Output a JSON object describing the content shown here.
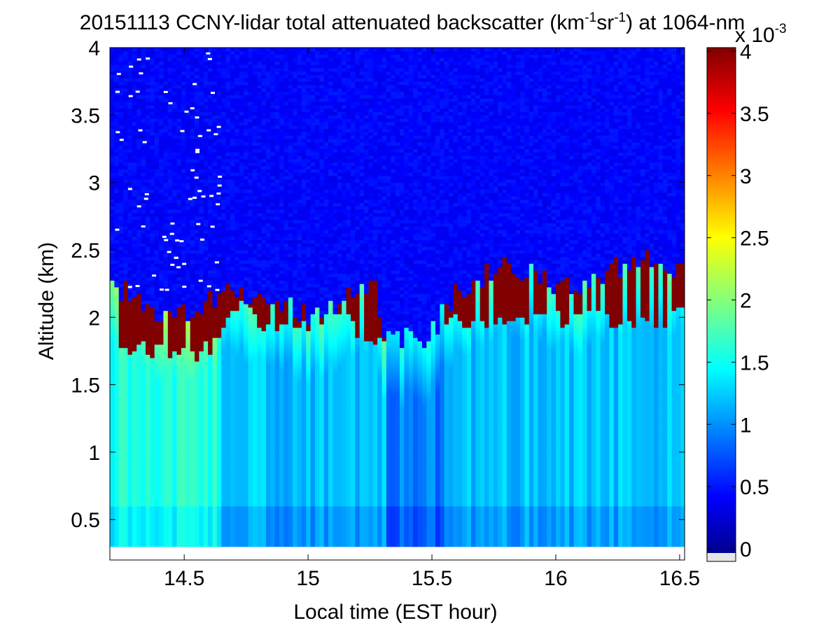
{
  "title": {
    "prefix": "20151113 CCNY-lidar total attenuated backscatter (km",
    "sup1": "-1",
    "mid": "sr",
    "sup2": "-1",
    "suffix": ") at 1064-nm"
  },
  "colorbar": {
    "exponent_prefix": "x 10",
    "exponent": "-3",
    "ticks": [
      "0",
      "0.5",
      "1",
      "1.5",
      "2",
      "2.5",
      "3",
      "3.5",
      "4"
    ],
    "colormap": "jet",
    "colors": [
      "#00008f",
      "#0000ff",
      "#00ffff",
      "#ffff00",
      "#ff0000",
      "#800000"
    ]
  },
  "chart_data": {
    "type": "heatmap",
    "title": "20151113 CCNY-lidar total attenuated backscatter (km-1sr-1) at 1064-nm",
    "xlabel": "Local time (EST hour)",
    "ylabel": "Altitude (km)",
    "xlim": [
      14.2,
      16.52
    ],
    "ylim": [
      0.2,
      4.0
    ],
    "data_ylim": [
      0.3,
      4.0
    ],
    "clim": [
      0,
      4
    ],
    "colorbar_unit_scale": "x 10^-3",
    "x_ticks": [
      "14.5",
      "15",
      "15.5",
      "16",
      "16.5"
    ],
    "y_ticks": [
      "0.5",
      "1",
      "1.5",
      "2",
      "2.5",
      "3",
      "3.5",
      "4"
    ],
    "x_tick_values": [
      14.5,
      15.0,
      15.5,
      16.0,
      16.5
    ],
    "y_tick_values": [
      0.5,
      1.0,
      1.5,
      2.0,
      2.5,
      3.0,
      3.5,
      4.0
    ],
    "boundary_layer_top": {
      "time": [
        14.2,
        14.3,
        14.4,
        14.5,
        14.6,
        14.7,
        14.8,
        14.9,
        15.0,
        15.1,
        15.2,
        15.25,
        15.3,
        15.4,
        15.5,
        15.6,
        15.7,
        15.8,
        15.9,
        16.0,
        16.1,
        16.2,
        16.3,
        16.4,
        16.5
      ],
      "altitude_km": [
        2.2,
        2.15,
        2.0,
        2.05,
        2.1,
        2.2,
        2.1,
        2.05,
        2.0,
        2.1,
        2.2,
        2.25,
        1.9,
        1.8,
        1.9,
        2.2,
        2.3,
        2.35,
        2.3,
        2.25,
        2.2,
        2.35,
        2.4,
        2.4,
        2.3
      ]
    },
    "dense_layer_base_km": {
      "time": [
        14.2,
        14.3,
        14.4,
        14.5,
        14.6,
        14.7,
        14.8,
        14.9,
        15.0,
        15.1,
        15.2,
        15.25,
        15.6,
        15.7,
        15.8,
        16.2,
        16.3,
        16.4,
        16.5
      ],
      "altitude_km": [
        1.75,
        1.75,
        1.75,
        1.72,
        1.75,
        2.1,
        1.95,
        1.9,
        1.9,
        2.1,
        1.85,
        1.85,
        1.95,
        1.95,
        1.95,
        2.0,
        1.95,
        1.95,
        2.0
      ]
    }
  }
}
